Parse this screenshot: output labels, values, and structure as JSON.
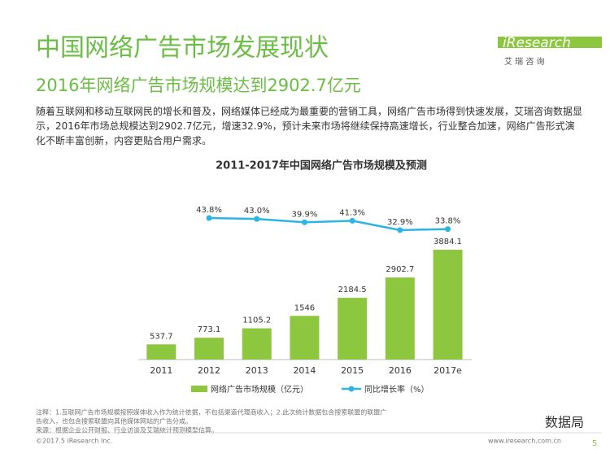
{
  "header": {
    "title": "中国网络广告市场发展现状",
    "subtitle": "2016年网络广告市场规模达到2902.7亿元",
    "logo": "iResearch",
    "logo_sub": "艾 瑞 咨 询",
    "body": "随着互联网和移动互联网民的增长和普及，网络媒体已经成为最重要的营销工具，网络广告市场得到快速发展，艾瑞咨询数据显示，2016年市场总规模达到2902.7亿元，增速32.9%，预计未来市场将继续保持高速增长，行业整合加速，网络广告形式演化不断丰富创新，内容更贴合用户需求。"
  },
  "chart_data": {
    "type": "bar",
    "title": "2011-2017年中国网络广告市场规模及预测",
    "categories": [
      "2011",
      "2012",
      "2013",
      "2014",
      "2015",
      "2016",
      "2017e"
    ],
    "series": [
      {
        "name": "网络广告市场规模（亿元）",
        "color": "#8dc63f",
        "type": "bar",
        "values": [
          537.7,
          773.1,
          1105.2,
          1546.0,
          2184.5,
          2902.7,
          3884.1
        ]
      },
      {
        "name": "同比增长率（%）",
        "color": "#2bb5e3",
        "type": "line",
        "values": [
          null,
          43.8,
          43.0,
          39.9,
          41.3,
          32.9,
          33.8
        ],
        "value_labels": [
          null,
          "43.8%",
          "43.0%",
          "39.9%",
          "41.3%",
          "32.9%",
          "33.8%"
        ]
      }
    ]
  },
  "footer": {
    "notes": [
      "注释：1.互联网广告市场规模按照媒体收入作为统计依据，不包括渠道代理商收入；2.此次统计数据包含搜索联盟的联盟广",
      "告收入，也包含搜索联盟向其他媒体网站的广告分成。",
      "来源：根据企业公开财报、行业访谈及艾瑞统计预测模型估算。"
    ],
    "copyright": "©2017.5 iResearch Inc.",
    "url": "www.iresearch.com.cn",
    "page": "5",
    "watermark": "数据局"
  }
}
